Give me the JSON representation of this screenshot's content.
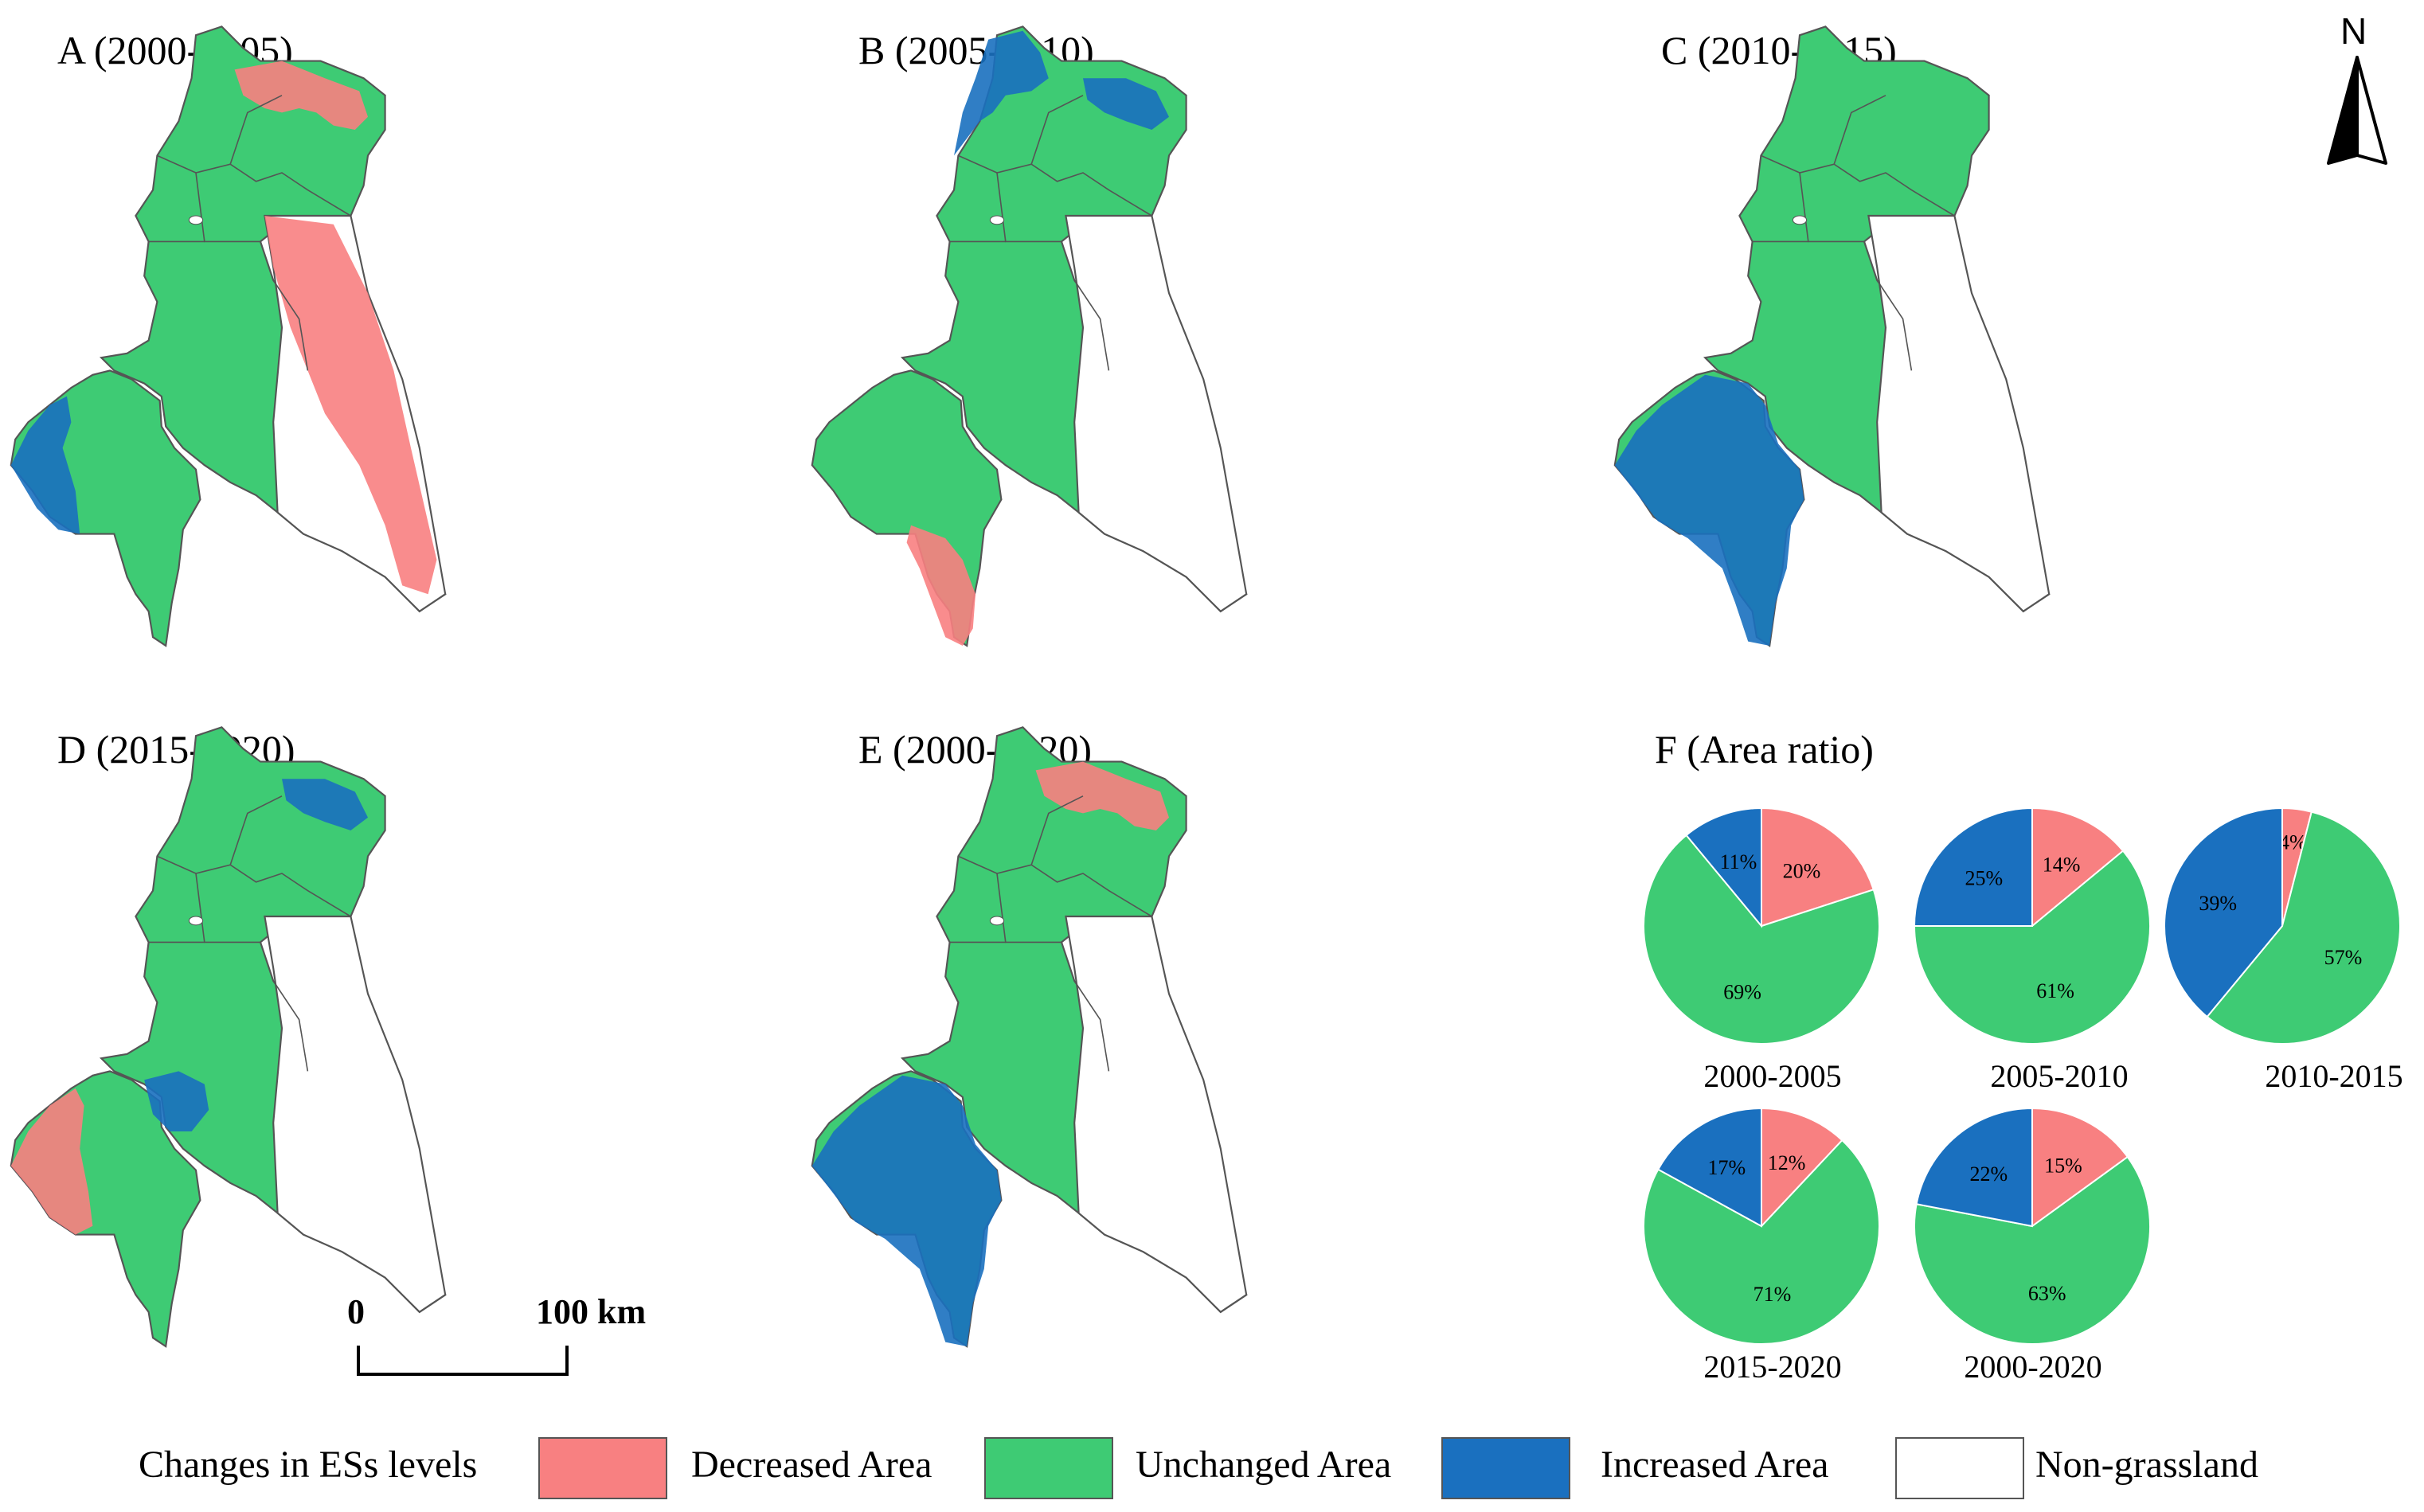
{
  "colors": {
    "decreased": "#f88081",
    "unchanged": "#3ecb74",
    "increased": "#1a70bf",
    "non_grassland": "#ffffff",
    "outline": "#555555"
  },
  "panels": [
    {
      "id": "A",
      "title": "A (2000-2005)",
      "dominant": "unchanged",
      "highlights": [
        "decreased-north",
        "decreased-east",
        "increased-west"
      ]
    },
    {
      "id": "B",
      "title": "B (2005-2010)",
      "dominant": "unchanged",
      "highlights": [
        "increased-north",
        "increased-east",
        "decreased-south"
      ]
    },
    {
      "id": "C",
      "title": "C (2010-2015)",
      "dominant": "unchanged",
      "highlights": [
        "increased-southwest"
      ]
    },
    {
      "id": "D",
      "title": "D (2015-2020)",
      "dominant": "unchanged",
      "highlights": [
        "decreased-west",
        "increased-center",
        "increased-east"
      ]
    },
    {
      "id": "E",
      "title": "E (2000-2020)",
      "dominant": "unchanged",
      "highlights": [
        "decreased-north",
        "increased-southwest"
      ]
    }
  ],
  "area_ratio": {
    "title": "F (Area ratio)",
    "charts": [
      {
        "period": "2000-2005",
        "decreased": 20,
        "unchanged": 69,
        "increased": 11
      },
      {
        "period": "2005-2010",
        "decreased": 14,
        "unchanged": 61,
        "increased": 25
      },
      {
        "period": "2010-2015",
        "decreased": 4,
        "unchanged": 57,
        "increased": 39
      },
      {
        "period": "2015-2020",
        "decreased": 12,
        "unchanged": 71,
        "increased": 17
      },
      {
        "period": "2000-2020",
        "decreased": 15,
        "unchanged": 63,
        "increased": 22
      }
    ]
  },
  "north_arrow": {
    "label": "N"
  },
  "scale_bar": {
    "start": "0",
    "end": "100 km"
  },
  "legend": {
    "title": "Changes in ESs levels",
    "items": [
      {
        "key": "decreased",
        "label": "Decreased Area"
      },
      {
        "key": "unchanged",
        "label": "Unchanged Area"
      },
      {
        "key": "increased",
        "label": "Increased Area"
      },
      {
        "key": "non_grassland",
        "label": "Non-grassland"
      }
    ]
  }
}
